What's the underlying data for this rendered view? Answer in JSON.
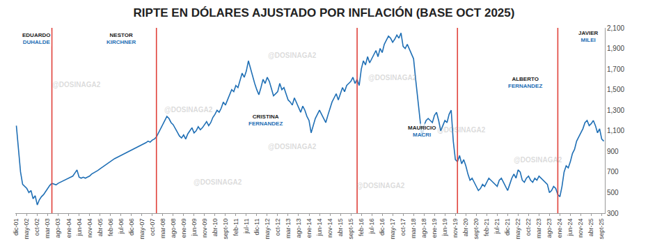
{
  "chart_data": {
    "type": "line",
    "title": "RIPTE EN DÓLARES AJUSTADO POR INFLACIÓN (BASE OCT 2025)",
    "watermark": "@DOSINAGA2",
    "color": "#1f6fb5",
    "grid": false,
    "ylim": [
      300,
      2100
    ],
    "yticks": [
      {
        "value": 300,
        "label": "300"
      },
      {
        "value": 500,
        "label": "500"
      },
      {
        "value": 700,
        "label": "700"
      },
      {
        "value": 900,
        "label": "900"
      },
      {
        "value": 1100,
        "label": "1,100"
      },
      {
        "value": 1300,
        "label": "1,300"
      },
      {
        "value": 1500,
        "label": "1,500"
      },
      {
        "value": 1700,
        "label": "1,700"
      },
      {
        "value": 1900,
        "label": "1,900"
      },
      {
        "value": 2100,
        "label": "2,100"
      }
    ],
    "dividers": [
      17,
      67,
      163,
      211,
      259
    ],
    "annotations": [
      {
        "first": "EDUARDO",
        "last": "DUHALDE"
      },
      {
        "first": "NESTOR",
        "last": "KIRCHNER"
      },
      {
        "first": "CRISTINA",
        "last": "FERNANDEZ"
      },
      {
        "first": "MAURICIO",
        "last": "MACRI"
      },
      {
        "first": "ALBERTO",
        "last": "FERNANDEZ"
      },
      {
        "first": "JAVIER",
        "last": "MILEI"
      }
    ],
    "categories": [
      "dic-01",
      null,
      null,
      null,
      null,
      "may-02",
      null,
      null,
      null,
      null,
      "oct-02",
      null,
      null,
      null,
      null,
      "mar-03",
      null,
      null,
      null,
      null,
      "ago-03",
      null,
      null,
      null,
      null,
      "ene-04",
      null,
      null,
      null,
      null,
      "jun-04",
      null,
      null,
      null,
      null,
      "nov-04",
      null,
      null,
      null,
      null,
      "abr-05",
      null,
      null,
      null,
      null,
      "feb-06",
      null,
      null,
      null,
      null,
      "jul-06",
      null,
      null,
      null,
      null,
      "dic-06",
      null,
      null,
      null,
      null,
      "may-07",
      null,
      null,
      null,
      null,
      "oct-07",
      null,
      null,
      null,
      null,
      "mar-08",
      null,
      null,
      null,
      null,
      "ago-08",
      null,
      null,
      null,
      null,
      "ene-09",
      null,
      null,
      null,
      null,
      "jun-09",
      null,
      null,
      null,
      null,
      "nov-09",
      null,
      null,
      null,
      null,
      "abr-10",
      null,
      null,
      null,
      null,
      "sept-10",
      null,
      null,
      null,
      null,
      "feb-11",
      null,
      null,
      null,
      null,
      "jul-11",
      null,
      null,
      null,
      null,
      "dic-11",
      null,
      null,
      null,
      null,
      "may-12",
      null,
      null,
      null,
      null,
      "oct-12",
      null,
      null,
      null,
      null,
      "mar-13",
      null,
      null,
      null,
      null,
      "ago-13",
      null,
      null,
      null,
      null,
      "ene-14",
      null,
      null,
      null,
      null,
      "jun-14",
      null,
      null,
      null,
      null,
      "nov-14",
      null,
      null,
      null,
      null,
      "abr-15",
      null,
      null,
      null,
      null,
      "sept-15",
      null,
      null,
      null,
      null,
      "feb-16",
      null,
      null,
      null,
      null,
      "jul-16",
      null,
      null,
      null,
      null,
      "dic-16",
      null,
      null,
      null,
      null,
      "may-17",
      null,
      null,
      null,
      null,
      "oct-17",
      null,
      null,
      null,
      null,
      "mar-18",
      null,
      null,
      null,
      null,
      "ago-18",
      null,
      null,
      null,
      null,
      "ene-19",
      null,
      null,
      null,
      null,
      "jun-19",
      null,
      null,
      null,
      null,
      "nov-19",
      null,
      null,
      null,
      null,
      "abr-20",
      null,
      null,
      null,
      null,
      "sept-20",
      null,
      null,
      null,
      null,
      "feb-21",
      null,
      null,
      null,
      null,
      "jul-21",
      null,
      null,
      null,
      null,
      "dic-21",
      null,
      null,
      null,
      null,
      "may-22",
      null,
      null,
      null,
      null,
      "oct-22",
      null,
      null,
      null,
      null,
      "mar-23",
      null,
      null,
      null,
      null,
      "ago-23",
      null,
      null,
      null,
      null,
      "ene-24",
      null,
      null,
      null,
      null,
      "jun-24",
      null,
      null,
      null,
      null,
      "nov-24",
      null,
      null,
      null,
      null,
      "abr-25",
      null,
      null,
      null,
      null,
      "sept-25",
      null
    ],
    "values": [
      1150,
      900,
      700,
      580,
      560,
      540,
      500,
      520,
      440,
      470,
      380,
      430,
      460,
      480,
      510,
      540,
      570,
      590,
      580,
      575,
      590,
      600,
      610,
      620,
      630,
      640,
      650,
      660,
      690,
      720,
      650,
      640,
      650,
      640,
      650,
      660,
      680,
      690,
      700,
      715,
      730,
      745,
      760,
      770,
      785,
      800,
      815,
      830,
      840,
      850,
      860,
      870,
      880,
      890,
      900,
      910,
      920,
      930,
      945,
      955,
      965,
      975,
      985,
      1000,
      990,
      1010,
      1020,
      1040,
      1080,
      1120,
      1160,
      1200,
      1240,
      1220,
      1180,
      1160,
      1120,
      1080,
      1050,
      1030,
      1060,
      1020,
      1070,
      1100,
      1130,
      1080,
      1100,
      1140,
      1110,
      1130,
      1160,
      1190,
      1150,
      1180,
      1230,
      1260,
      1300,
      1280,
      1320,
      1380,
      1350,
      1400,
      1460,
      1500,
      1480,
      1540,
      1520,
      1600,
      1660,
      1620,
      1680,
      1780,
      1700,
      1620,
      1560,
      1500,
      1450,
      1520,
      1600,
      1560,
      1620,
      1580,
      1500,
      1440,
      1460,
      1480,
      1560,
      1500,
      1520,
      1460,
      1400,
      1380,
      1350,
      1420,
      1370,
      1320,
      1280,
      1340,
      1300,
      1240,
      1200,
      1080,
      1150,
      1220,
      1260,
      1300,
      1260,
      1220,
      1180,
      1250,
      1320,
      1380,
      1420,
      1460,
      1400,
      1460,
      1520,
      1480,
      1540,
      1560,
      1580,
      1620,
      1560,
      1600,
      1540,
      1700,
      1780,
      1740,
      1820,
      1760,
      1800,
      1840,
      1880,
      1820,
      1900,
      1860,
      1940,
      1980,
      2020,
      2000,
      1960,
      1990,
      2030,
      2000,
      2050,
      1920,
      1900,
      1940,
      1890,
      1850,
      1800,
      1600,
      1400,
      1200,
      1040,
      1150,
      1200,
      1220,
      1200,
      1180,
      1250,
      1280,
      1200,
      1100,
      1150,
      1200,
      1180,
      1260,
      1300,
      1000,
      820,
      800,
      860,
      780,
      820,
      760,
      680,
      620,
      640,
      600,
      560,
      520,
      540,
      580,
      560,
      600,
      640,
      620,
      600,
      580,
      560,
      620,
      640,
      600,
      560,
      520,
      580,
      640,
      680,
      640,
      720,
      700,
      620,
      600,
      640,
      660,
      620,
      600,
      640,
      620,
      660,
      640,
      620,
      600,
      580,
      500,
      520,
      560,
      540,
      480,
      460,
      560,
      700,
      760,
      740,
      800,
      880,
      920,
      1000,
      1040,
      1080,
      1120,
      1180,
      1200,
      1150,
      1170,
      1200,
      1150,
      1080,
      1120,
      1020,
      1000
    ]
  }
}
